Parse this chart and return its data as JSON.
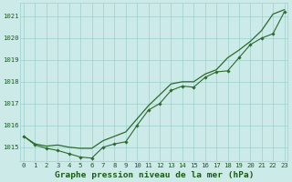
{
  "title": "Graphe pression niveau de la mer (hPa)",
  "hours": [
    0,
    1,
    2,
    3,
    4,
    5,
    6,
    7,
    8,
    9,
    10,
    11,
    12,
    13,
    14,
    15,
    16,
    17,
    18,
    19,
    20,
    21,
    22,
    23
  ],
  "smooth_y": [
    1015.5,
    1015.15,
    1015.05,
    1015.1,
    1015.0,
    1014.95,
    1014.95,
    1015.3,
    1015.5,
    1015.7,
    1016.3,
    1016.9,
    1017.4,
    1017.9,
    1018.0,
    1018.0,
    1018.35,
    1018.55,
    1019.1,
    1019.45,
    1019.85,
    1020.35,
    1021.1,
    1021.3
  ],
  "marker_y": [
    1015.5,
    1015.1,
    1014.95,
    1014.85,
    1014.7,
    1014.55,
    1014.5,
    1015.0,
    1015.15,
    1015.25,
    1016.0,
    1016.7,
    1017.0,
    1017.6,
    1017.8,
    1017.75,
    1018.2,
    1018.45,
    1018.5,
    1019.1,
    1019.7,
    1020.0,
    1020.2,
    1021.2
  ],
  "ylim_min": 1014.35,
  "ylim_max": 1021.6,
  "yticks": [
    1015,
    1016,
    1017,
    1018,
    1019,
    1020,
    1021
  ],
  "line_color": "#2d6a2d",
  "bg_color": "#cceae7",
  "grid_color": "#9ecfcc",
  "label_color": "#1a5c1a",
  "title_color": "#1a5c1a",
  "title_fontsize": 6.8,
  "tick_fontsize": 5.2,
  "fig_width": 3.2,
  "fig_height": 2.0,
  "dpi": 100
}
